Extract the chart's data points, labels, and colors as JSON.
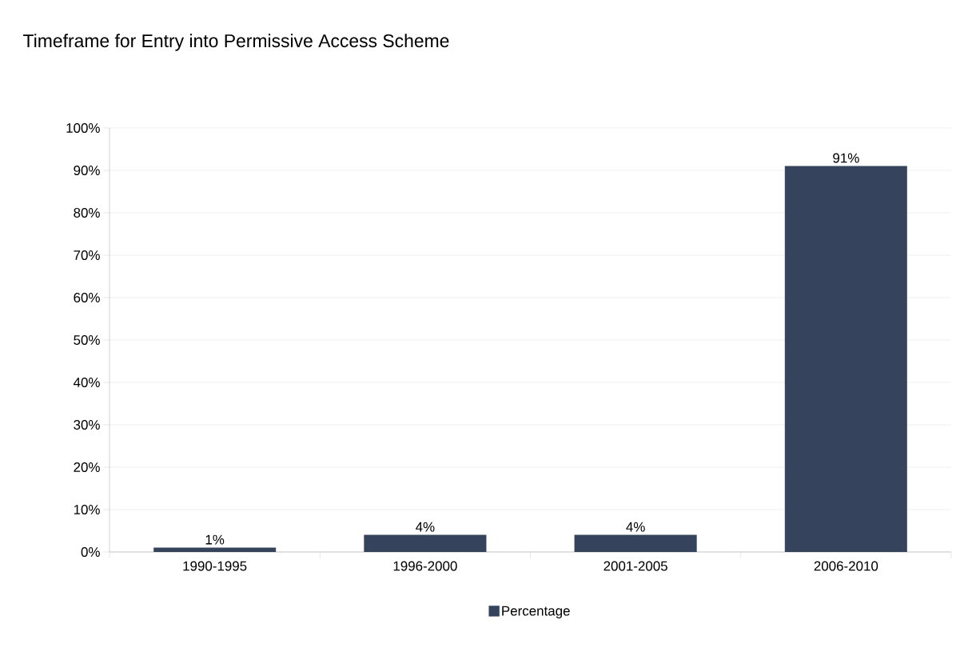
{
  "chart_data": {
    "type": "bar",
    "title": "Timeframe for Entry into Permissive Access Scheme",
    "categories": [
      "1990-1995",
      "1996-2000",
      "2001-2005",
      "2006-2010"
    ],
    "series": [
      {
        "name": "Percentage",
        "color": "#36435c",
        "values": [
          1,
          4,
          4,
          91
        ]
      }
    ],
    "value_labels": [
      "1%",
      "4%",
      "4%",
      "91%"
    ],
    "ylim": [
      0,
      100
    ],
    "yticks": [
      {
        "value": 0,
        "label": "0%"
      },
      {
        "value": 10,
        "label": "10%"
      },
      {
        "value": 20,
        "label": "20%"
      },
      {
        "value": 30,
        "label": "30%"
      },
      {
        "value": 40,
        "label": "40%"
      },
      {
        "value": 50,
        "label": "50%"
      },
      {
        "value": 60,
        "label": "60%"
      },
      {
        "value": 70,
        "label": "70%"
      },
      {
        "value": 80,
        "label": "80%"
      },
      {
        "value": 90,
        "label": "90%"
      },
      {
        "value": 100,
        "label": "100%"
      }
    ],
    "grid": "y",
    "legend": "bottom"
  }
}
